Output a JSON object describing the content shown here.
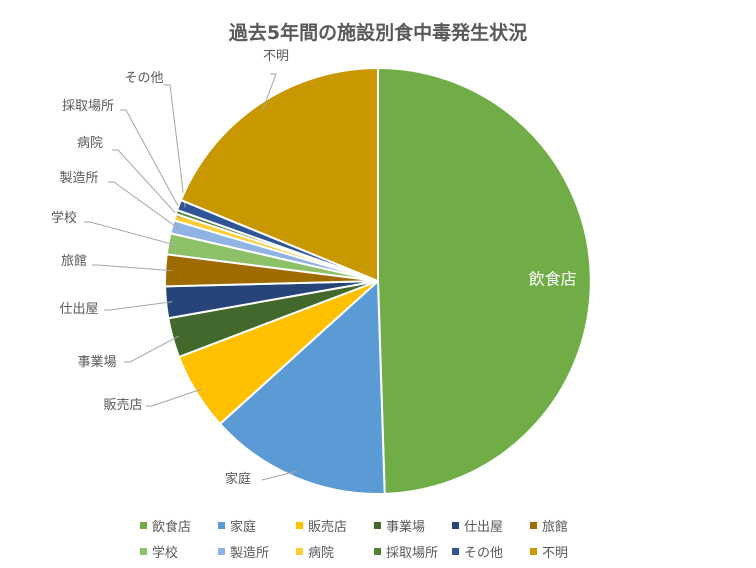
{
  "chart_data": {
    "type": "pie",
    "title": "過去5年間の施設別食中毒発生状況",
    "slices": [
      {
        "label": "飲食店",
        "value": 49.5,
        "color": "#70AD47"
      },
      {
        "label": "家庭",
        "value": 13.8,
        "color": "#5B9BD5"
      },
      {
        "label": "販売店",
        "value": 5.9,
        "color": "#FFC000"
      },
      {
        "label": "事業場",
        "value": 3.0,
        "color": "#43682B"
      },
      {
        "label": "仕出屋",
        "value": 2.4,
        "color": "#264478"
      },
      {
        "label": "旅館",
        "value": 2.4,
        "color": "#9E6B00"
      },
      {
        "label": "学校",
        "value": 1.6,
        "color": "#8CC168"
      },
      {
        "label": "製造所",
        "value": 1.0,
        "color": "#8FB4E3"
      },
      {
        "label": "病院",
        "value": 0.5,
        "color": "#FFCD33"
      },
      {
        "label": "採取場所",
        "value": 0.3,
        "color": "#548235"
      },
      {
        "label": "その他",
        "value": 0.8,
        "color": "#2F5597"
      },
      {
        "label": "不明",
        "value": 18.8,
        "color": "#C99700"
      }
    ],
    "legend": "bottom"
  }
}
